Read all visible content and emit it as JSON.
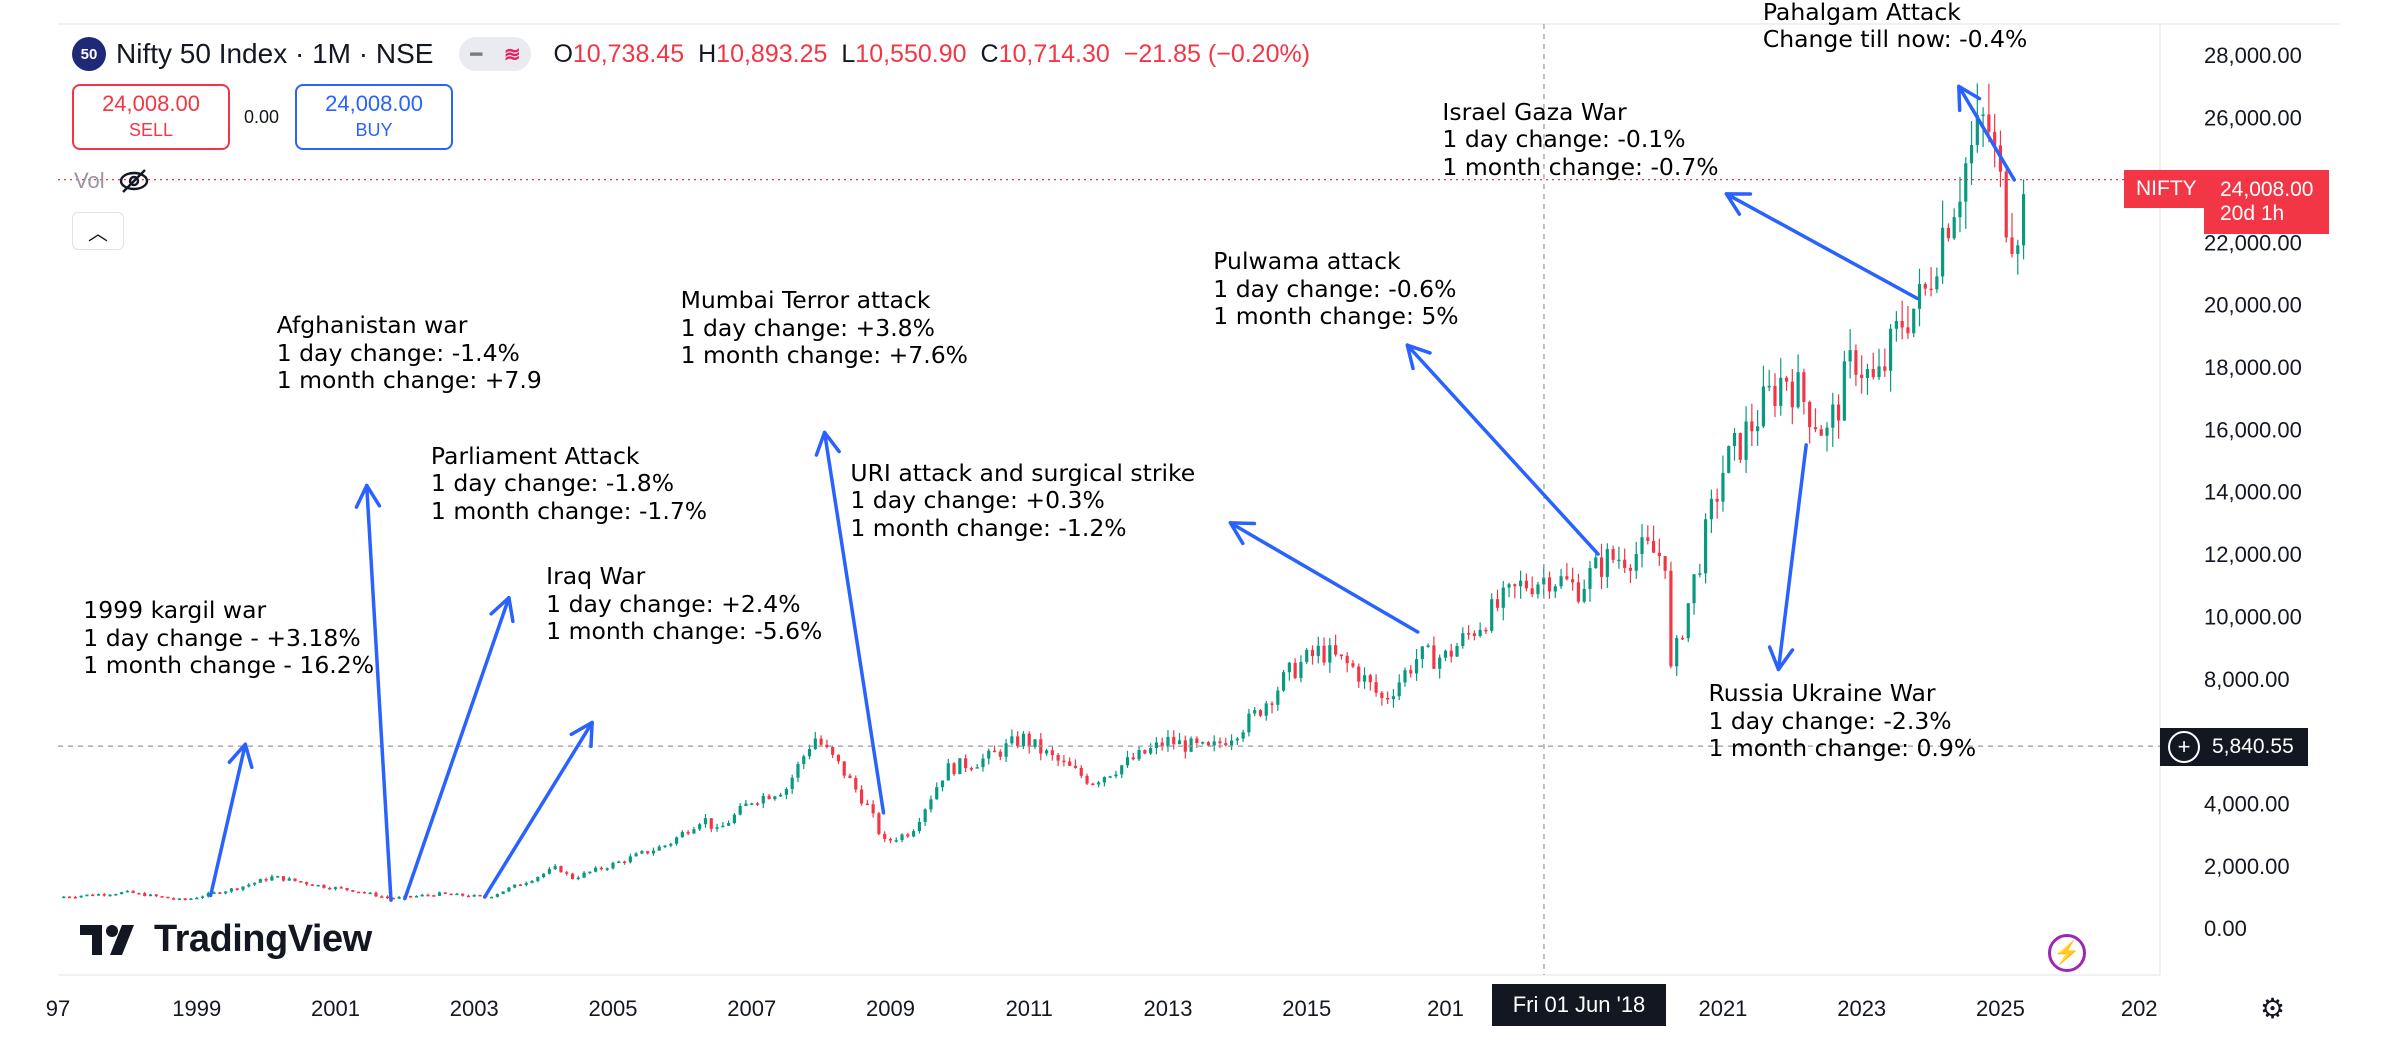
{
  "header": {
    "badge": "50",
    "title": "Nifty 50 Index · 1M · NSE",
    "open_label": "O",
    "open": "10,738.45",
    "high_label": "H",
    "high": "10,893.25",
    "low_label": "L",
    "low": "10,550.90",
    "close_label": "C",
    "close": "10,714.30",
    "change": "−21.85 (−0.20%)"
  },
  "trade": {
    "sell_price": "24,008.00",
    "sell_label": "SELL",
    "spread": "0.00",
    "buy_price": "24,008.00",
    "buy_label": "BUY"
  },
  "volume_label": "Vol",
  "brand": "TradingView",
  "badges": {
    "symbol": "NIFTY",
    "last_price": "24,008.00",
    "countdown": "20d 1h",
    "crosshair_price": "5,840.55",
    "crosshair_date": "Fri 01 Jun '18"
  },
  "colors": {
    "up": "#089981",
    "down": "#f23645",
    "arrow": "#2962ff",
    "last_line": "#f23645"
  },
  "chart_data": {
    "type": "candlestick",
    "x_tick_labels": [
      "97",
      "1999",
      "2001",
      "2003",
      "2005",
      "2007",
      "2009",
      "2011",
      "2013",
      "2015",
      "201",
      "2021",
      "2023",
      "2025",
      "202"
    ],
    "y_tick_labels": [
      "0.00",
      "2,000.00",
      "4,000.00",
      "6,000.00",
      "8,000.00",
      "10,000.00",
      "12,000.00",
      "14,000.00",
      "16,000.00",
      "18,000.00",
      "20,000.00",
      "22,000.00",
      "24,000.00",
      "26,000.00",
      "28,000.00"
    ],
    "ylim": [
      -1500,
      29000
    ],
    "xlim": [
      1997.0,
      2027.3
    ],
    "last_value": 24008,
    "crosshair_x": 2018.42,
    "crosshair_y": 5840.55,
    "series_path": [
      [
        1997.0,
        1000
      ],
      [
        1998.0,
        1150
      ],
      [
        1998.8,
        900
      ],
      [
        1999.6,
        1300
      ],
      [
        2000.1,
        1650
      ],
      [
        2000.8,
        1350
      ],
      [
        2001.3,
        1200
      ],
      [
        2001.8,
        950
      ],
      [
        2002.5,
        1100
      ],
      [
        2003.2,
        1000
      ],
      [
        2003.8,
        1550
      ],
      [
        2004.2,
        1950
      ],
      [
        2004.4,
        1600
      ],
      [
        2005.0,
        2050
      ],
      [
        2005.8,
        2700
      ],
      [
        2006.3,
        3550
      ],
      [
        2006.5,
        3100
      ],
      [
        2007.0,
        4100
      ],
      [
        2007.5,
        4500
      ],
      [
        2007.9,
        6150
      ],
      [
        2008.3,
        5100
      ],
      [
        2008.7,
        3800
      ],
      [
        2008.9,
        2750
      ],
      [
        2009.3,
        3100
      ],
      [
        2009.8,
        5100
      ],
      [
        2010.4,
        5450
      ],
      [
        2010.9,
        6100
      ],
      [
        2011.3,
        5500
      ],
      [
        2011.9,
        4700
      ],
      [
        2012.4,
        5300
      ],
      [
        2013.0,
        6000
      ],
      [
        2013.6,
        5700
      ],
      [
        2014.2,
        6700
      ],
      [
        2014.8,
        8300
      ],
      [
        2015.2,
        8900
      ],
      [
        2015.7,
        8300
      ],
      [
        2016.1,
        7300
      ],
      [
        2016.6,
        8700
      ],
      [
        2017.0,
        8700
      ],
      [
        2017.6,
        10000
      ],
      [
        2018.1,
        11000
      ],
      [
        2018.5,
        11300
      ],
      [
        2018.9,
        10900
      ],
      [
        2019.3,
        11800
      ],
      [
        2019.9,
        12100
      ],
      [
        2020.2,
        11900
      ],
      [
        2020.25,
        8200
      ],
      [
        2020.6,
        11300
      ],
      [
        2021.0,
        14700
      ],
      [
        2021.6,
        16800
      ],
      [
        2021.9,
        17800
      ],
      [
        2022.3,
        16500
      ],
      [
        2022.5,
        15800
      ],
      [
        2022.9,
        18400
      ],
      [
        2023.2,
        17300
      ],
      [
        2023.6,
        19600
      ],
      [
        2023.9,
        20200
      ],
      [
        2024.1,
        22000
      ],
      [
        2024.5,
        24500
      ],
      [
        2024.8,
        26000
      ],
      [
        2025.0,
        23700
      ],
      [
        2025.15,
        22500
      ],
      [
        2025.3,
        22800
      ],
      [
        2025.4,
        24008
      ]
    ],
    "annotations": [
      {
        "lines": [
          "1999 kargil war",
          "1 day change - +3.18%",
          "1 month change - 16.2%"
        ],
        "from": [
          1999.2,
          1050
        ],
        "to": [
          1999.7,
          5900
        ]
      },
      {
        "lines": [
          "Afghanistan war",
          "1 day change: -1.4%",
          "1 month change: +7.9"
        ],
        "from": [
          2001.8,
          900
        ],
        "to": [
          2001.45,
          14200
        ]
      },
      {
        "lines": [
          "Parliament Attack",
          "1 day change: -1.8%",
          "1 month change: -1.7%"
        ],
        "from": [
          2002.0,
          950
        ],
        "to": [
          2003.5,
          10600
        ]
      },
      {
        "lines": [
          "Iraq War",
          "1 day change: +2.4%",
          "1 month change: -5.6%"
        ],
        "from": [
          2003.15,
          1000
        ],
        "to": [
          2004.7,
          6600
        ]
      },
      {
        "lines": [
          "Mumbai Terror attack",
          "1 day change: +3.8%",
          "1 month change: +7.6%"
        ],
        "from": [
          2008.9,
          3700
        ],
        "to": [
          2008.05,
          15900
        ]
      },
      {
        "lines": [
          "URI attack and surgical strike",
          "1 day change: +0.3%",
          "1 month change: -1.2%"
        ],
        "from": [
          2016.6,
          9500
        ],
        "to": [
          2013.9,
          13000
        ]
      },
      {
        "lines": [
          "Pulwama attack",
          "1 day change: -0.6%",
          "1 month change: 5%"
        ],
        "from": [
          2019.2,
          12000
        ],
        "to": [
          2016.45,
          18700
        ]
      },
      {
        "lines": [
          "Israel Gaza War",
          "1 day change: -0.1%",
          "1 month change: -0.7%"
        ],
        "from": [
          2023.8,
          20200
        ],
        "to": [
          2021.05,
          23550
        ]
      },
      {
        "lines": [
          "Russia Ukraine War",
          "1 day change: -2.3%",
          "1 month change: 0.9%"
        ],
        "from": [
          2022.2,
          15500
        ],
        "to": [
          2021.8,
          8300
        ]
      },
      {
        "lines": [
          "Pahalgam Attack",
          "Change till now: -0.4%"
        ],
        "from": [
          2025.2,
          24000
        ],
        "to": [
          2024.4,
          27000
        ]
      }
    ]
  }
}
